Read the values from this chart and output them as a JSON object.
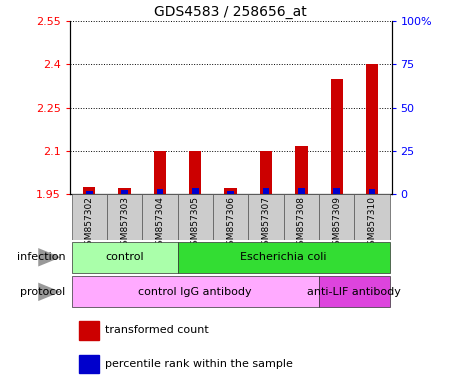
{
  "title": "GDS4583 / 258656_at",
  "samples": [
    "GSM857302",
    "GSM857303",
    "GSM857304",
    "GSM857305",
    "GSM857306",
    "GSM857307",
    "GSM857308",
    "GSM857309",
    "GSM857310"
  ],
  "red_values": [
    1.974,
    1.972,
    2.1,
    2.1,
    1.972,
    2.1,
    2.115,
    2.35,
    2.4
  ],
  "blue_percentiles": [
    1.5,
    2.0,
    3.0,
    3.5,
    1.5,
    3.5,
    3.5,
    3.5,
    3.0
  ],
  "ylim_left": [
    1.95,
    2.55
  ],
  "ylim_right": [
    0,
    100
  ],
  "yticks_left": [
    1.95,
    2.1,
    2.25,
    2.4,
    2.55
  ],
  "ytick_labels_left": [
    "1.95",
    "2.1",
    "2.25",
    "2.4",
    "2.55"
  ],
  "yticks_right": [
    0,
    25,
    50,
    75,
    100
  ],
  "ytick_labels_right": [
    "0",
    "25",
    "50",
    "75",
    "100%"
  ],
  "infection_groups": [
    {
      "label": "control",
      "start": 0,
      "end": 3,
      "color": "#aaffaa"
    },
    {
      "label": "Escherichia coli",
      "start": 3,
      "end": 9,
      "color": "#33dd33"
    }
  ],
  "protocol_groups": [
    {
      "label": "control IgG antibody",
      "start": 0,
      "end": 7,
      "color": "#ffaaff"
    },
    {
      "label": "anti-LIF antibody",
      "start": 7,
      "end": 9,
      "color": "#dd44dd"
    }
  ],
  "legend_red": "transformed count",
  "legend_blue": "percentile rank within the sample",
  "bar_width": 0.35,
  "base_value": 1.95,
  "sample_box_color": "#cccccc",
  "plot_bg_color": "#ffffff",
  "left_label_color": "#888888"
}
